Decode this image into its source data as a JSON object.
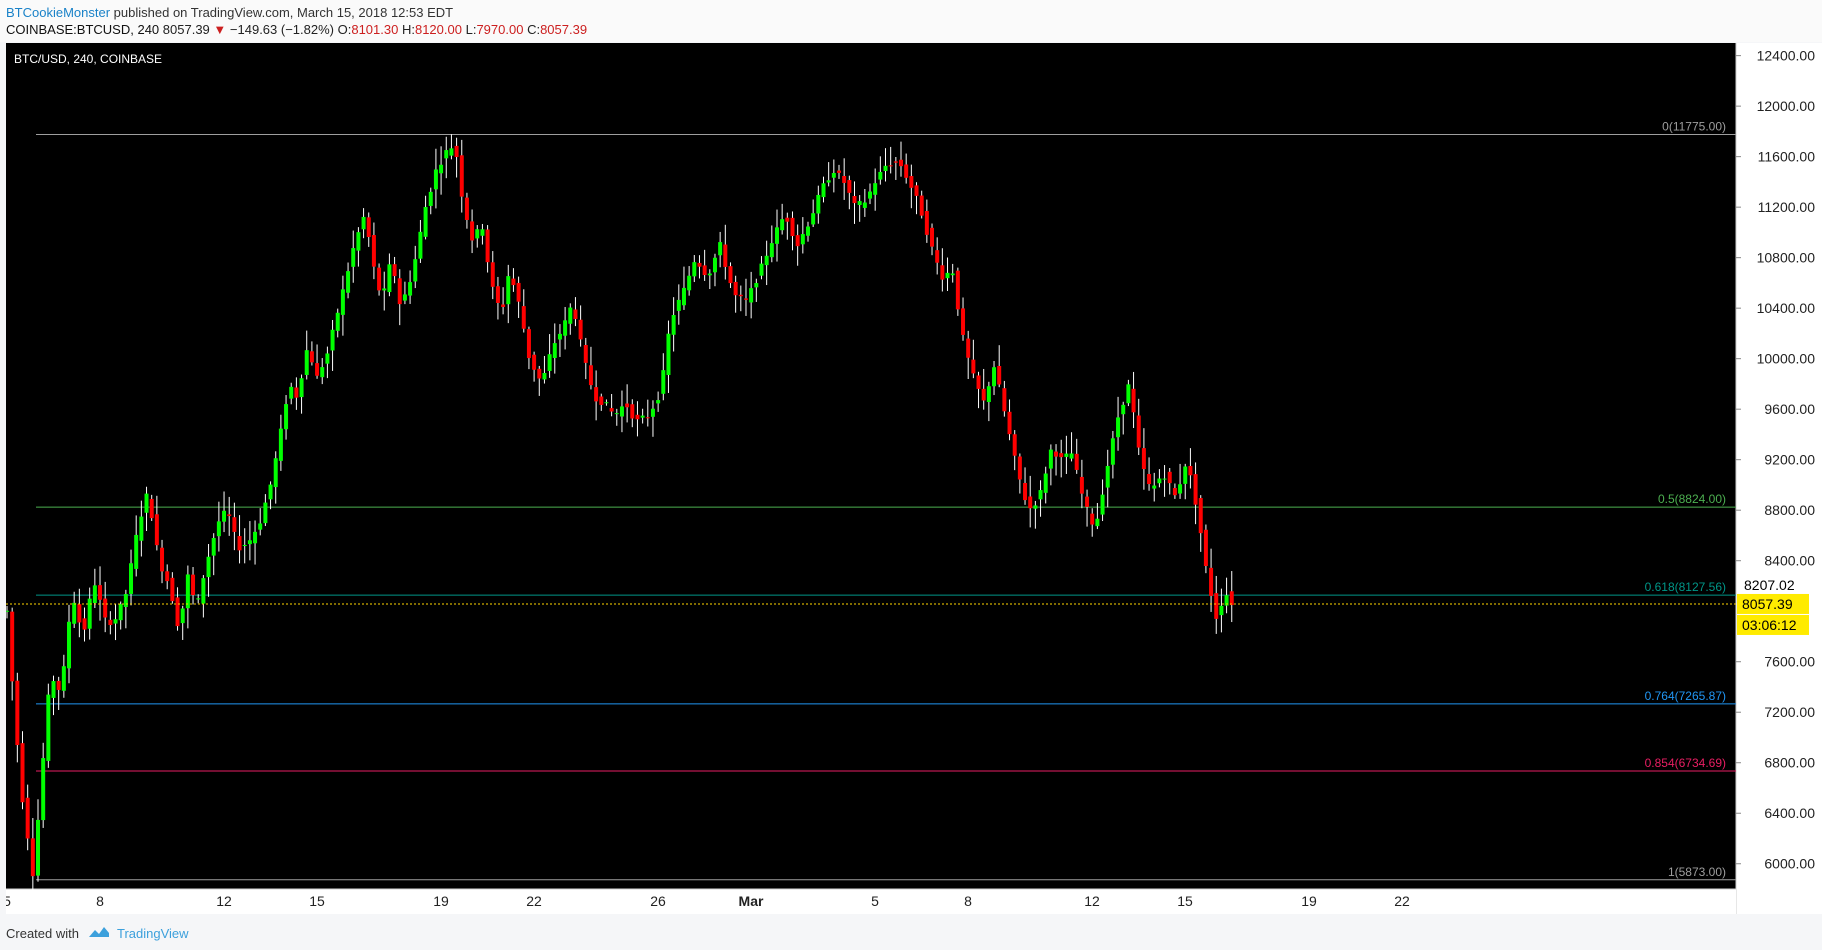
{
  "header": {
    "author": "BTCookieMonster",
    "published": "published on TradingView.com, March 15, 2018 12:53 EDT",
    "symbol": "COINBASE:BTCUSD, 240",
    "last": "8057.39",
    "change_arrow": "▼",
    "change": "−149.63 (−1.82%)",
    "open_label": "O:",
    "open": "8101.30",
    "high_label": "H:",
    "high": "8120.00",
    "low_label": "L:",
    "low": "7970.00",
    "close_label": "C:",
    "close": "8057.39"
  },
  "footer": {
    "created": "Created with",
    "brand": "TradingView",
    "logo_icon": "tradingview-cloud-icon"
  },
  "chart_data": {
    "type": "candlestick",
    "title": "BTC/USD, 240, COINBASE",
    "ylim": [
      5800,
      12500
    ],
    "y_ticks": [
      6000,
      6400,
      6800,
      7200,
      7600,
      8400,
      8800,
      9200,
      9600,
      10000,
      10400,
      10800,
      11200,
      11600,
      12000,
      12400
    ],
    "y_tick_labels": [
      "6000.00",
      "6400.00",
      "6800.00",
      "7200.00",
      "7600.00",
      "8400.00",
      "8800.00",
      "9200.00",
      "9600.00",
      "10000.00",
      "10400.00",
      "10800.00",
      "11200.00",
      "11600.00",
      "12000.00",
      "12400.00"
    ],
    "x_ticks": [
      {
        "label": "5",
        "day": 0
      },
      {
        "label": "8",
        "day": 3
      },
      {
        "label": "12",
        "day": 7
      },
      {
        "label": "15",
        "day": 10
      },
      {
        "label": "19",
        "day": 14
      },
      {
        "label": "22",
        "day": 17
      },
      {
        "label": "26",
        "day": 21
      },
      {
        "label": "Mar",
        "day": 24
      },
      {
        "label": "5",
        "day": 28
      },
      {
        "label": "8",
        "day": 31
      },
      {
        "label": "12",
        "day": 35
      },
      {
        "label": "15",
        "day": 38
      },
      {
        "label": "19",
        "day": 42
      },
      {
        "label": "22",
        "day": 45
      }
    ],
    "xlim": [
      0,
      48
    ],
    "price_label": "8057.39",
    "countdown": "03:06:12",
    "axis_mark": "8207.02",
    "fib_levels": [
      {
        "label": "0(11775.00)",
        "value": 11775,
        "color": "#9e9e9e"
      },
      {
        "label": "0.5(8824.00)",
        "value": 8824,
        "color": "#4caf50"
      },
      {
        "label": "0.618(8127.56)",
        "value": 8127.56,
        "color": "#009688"
      },
      {
        "label": "0.764(7265.87)",
        "value": 7265.87,
        "color": "#2196f3"
      },
      {
        "label": "0.854(6734.69)",
        "value": 6734.69,
        "color": "#e91e63"
      },
      {
        "label": "1(5873.00)",
        "value": 5873,
        "color": "#9e9e9e"
      }
    ],
    "up_color": "#00ff00",
    "down_color": "#ff0000",
    "wick_color": "#ffffff",
    "price_line_color": "#ffd600",
    "anchors": [
      [
        0.0,
        8000
      ],
      [
        0.18,
        7400
      ],
      [
        0.45,
        6600
      ],
      [
        0.85,
        5900
      ],
      [
        1.05,
        6500
      ],
      [
        1.4,
        7500
      ],
      [
        1.75,
        7350
      ],
      [
        2.1,
        8150
      ],
      [
        2.45,
        7800
      ],
      [
        2.8,
        8250
      ],
      [
        3.2,
        7900
      ],
      [
        3.55,
        7950
      ],
      [
        3.85,
        8150
      ],
      [
        4.25,
        8700
      ],
      [
        4.55,
        8950
      ],
      [
        4.9,
        8400
      ],
      [
        5.25,
        8200
      ],
      [
        5.55,
        7850
      ],
      [
        5.85,
        8300
      ],
      [
        6.1,
        8000
      ],
      [
        6.4,
        8350
      ],
      [
        6.8,
        8700
      ],
      [
        7.1,
        8800
      ],
      [
        7.45,
        8500
      ],
      [
        7.8,
        8550
      ],
      [
        8.15,
        8700
      ],
      [
        8.5,
        9000
      ],
      [
        8.75,
        9300
      ],
      [
        9.1,
        9800
      ],
      [
        9.35,
        9700
      ],
      [
        9.7,
        10100
      ],
      [
        10.0,
        9850
      ],
      [
        10.35,
        10050
      ],
      [
        10.8,
        10500
      ],
      [
        11.2,
        10900
      ],
      [
        11.55,
        11150
      ],
      [
        11.8,
        10750
      ],
      [
        12.1,
        10450
      ],
      [
        12.4,
        10800
      ],
      [
        12.7,
        10400
      ],
      [
        13.1,
        10700
      ],
      [
        13.5,
        11200
      ],
      [
        13.85,
        11500
      ],
      [
        14.2,
        11650
      ],
      [
        14.45,
        11700
      ],
      [
        14.7,
        11250
      ],
      [
        15.0,
        10950
      ],
      [
        15.35,
        11050
      ],
      [
        15.6,
        10600
      ],
      [
        15.95,
        10350
      ],
      [
        16.2,
        10700
      ],
      [
        16.55,
        10400
      ],
      [
        16.85,
        10000
      ],
      [
        17.25,
        9800
      ],
      [
        17.6,
        10100
      ],
      [
        17.95,
        10250
      ],
      [
        18.25,
        10450
      ],
      [
        18.6,
        10000
      ],
      [
        18.95,
        9700
      ],
      [
        19.25,
        9650
      ],
      [
        19.6,
        9550
      ],
      [
        19.95,
        9650
      ],
      [
        20.3,
        9500
      ],
      [
        20.7,
        9550
      ],
      [
        21.1,
        9750
      ],
      [
        21.4,
        10300
      ],
      [
        21.85,
        10550
      ],
      [
        22.2,
        10800
      ],
      [
        22.6,
        10650
      ],
      [
        23.0,
        10900
      ],
      [
        23.45,
        10500
      ],
      [
        23.85,
        10450
      ],
      [
        24.3,
        10700
      ],
      [
        24.7,
        10950
      ],
      [
        25.1,
        11150
      ],
      [
        25.5,
        10900
      ],
      [
        25.9,
        11100
      ],
      [
        26.3,
        11350
      ],
      [
        26.65,
        11500
      ],
      [
        27.0,
        11400
      ],
      [
        27.35,
        11200
      ],
      [
        27.7,
        11250
      ],
      [
        28.0,
        11400
      ],
      [
        28.4,
        11550
      ],
      [
        28.8,
        11550
      ],
      [
        29.1,
        11400
      ],
      [
        29.45,
        11200
      ],
      [
        29.8,
        10900
      ],
      [
        30.15,
        10650
      ],
      [
        30.5,
        10700
      ],
      [
        30.8,
        10200
      ],
      [
        31.1,
        9900
      ],
      [
        31.5,
        9650
      ],
      [
        31.85,
        9950
      ],
      [
        32.2,
        9550
      ],
      [
        32.6,
        9100
      ],
      [
        32.95,
        8800
      ],
      [
        33.3,
        8900
      ],
      [
        33.7,
        9300
      ],
      [
        34.0,
        9200
      ],
      [
        34.35,
        9250
      ],
      [
        34.75,
        8850
      ],
      [
        35.1,
        8650
      ],
      [
        35.5,
        9150
      ],
      [
        35.85,
        9550
      ],
      [
        36.2,
        9800
      ],
      [
        36.55,
        9200
      ],
      [
        36.9,
        8950
      ],
      [
        37.3,
        9100
      ],
      [
        37.7,
        8900
      ],
      [
        38.05,
        9200
      ],
      [
        38.4,
        8800
      ],
      [
        38.7,
        8300
      ],
      [
        39.0,
        7950
      ],
      [
        39.3,
        8150
      ],
      [
        39.55,
        8050
      ]
    ]
  }
}
